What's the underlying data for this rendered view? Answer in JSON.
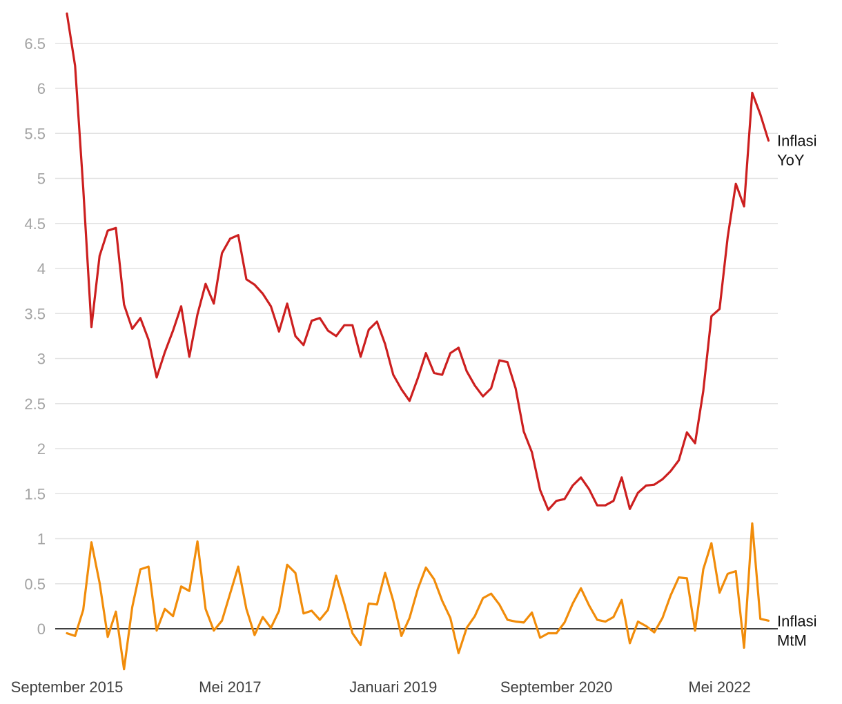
{
  "chart_data": {
    "type": "line",
    "title": "",
    "xlabel": "",
    "ylabel": "",
    "ylim": [
      -0.5,
      6.8
    ],
    "y_ticks": [
      0,
      0.5,
      1,
      1.5,
      2,
      2.5,
      3,
      3.5,
      4,
      4.5,
      5,
      5.5,
      6,
      6.5
    ],
    "x_tick_labels": [
      {
        "label": "September 2015",
        "index": 0
      },
      {
        "label": "Mei 2017",
        "index": 20
      },
      {
        "label": "Januari 2019",
        "index": 40
      },
      {
        "label": "September 2020",
        "index": 60
      },
      {
        "label": "Mei 2022",
        "index": 80
      }
    ],
    "grid": true,
    "legend": "right-inline",
    "series": [
      {
        "name": "Inflasi YoY",
        "label_lines": [
          "Inflasi",
          "YoY"
        ],
        "color": "#cc1f1f",
        "values": [
          6.83,
          6.25,
          4.89,
          3.35,
          4.14,
          4.42,
          4.45,
          3.6,
          3.33,
          3.45,
          3.21,
          2.79,
          3.07,
          3.31,
          3.58,
          3.02,
          3.49,
          3.83,
          3.61,
          4.17,
          4.33,
          4.37,
          3.88,
          3.82,
          3.72,
          3.58,
          3.3,
          3.61,
          3.25,
          3.15,
          3.42,
          3.45,
          3.31,
          3.25,
          3.37,
          3.37,
          3.02,
          3.32,
          3.41,
          3.16,
          2.82,
          2.66,
          2.53,
          2.78,
          3.06,
          2.84,
          2.82,
          3.06,
          3.12,
          2.86,
          2.7,
          2.58,
          2.67,
          2.98,
          2.96,
          2.67,
          2.19,
          1.96,
          1.54,
          1.32,
          1.42,
          1.44,
          1.59,
          1.68,
          1.55,
          1.37,
          1.37,
          1.42,
          1.68,
          1.33,
          1.51,
          1.59,
          1.6,
          1.66,
          1.75,
          1.87,
          2.18,
          2.06,
          2.64,
          3.47,
          3.55,
          4.35,
          4.94,
          4.69,
          5.95,
          5.71,
          5.42
        ]
      },
      {
        "name": "Inflasi MtM",
        "label_lines": [
          "Inflasi",
          "MtM"
        ],
        "color": "#f18c0a",
        "values": [
          -0.05,
          -0.08,
          0.21,
          0.96,
          0.51,
          -0.09,
          0.19,
          -0.45,
          0.24,
          0.66,
          0.69,
          -0.02,
          0.22,
          0.14,
          0.47,
          0.42,
          0.97,
          0.22,
          -0.02,
          0.09,
          0.39,
          0.69,
          0.22,
          -0.07,
          0.13,
          0.01,
          0.2,
          0.71,
          0.62,
          0.17,
          0.2,
          0.1,
          0.21,
          0.59,
          0.28,
          -0.05,
          -0.18,
          0.28,
          0.27,
          0.62,
          0.31,
          -0.08,
          0.12,
          0.44,
          0.68,
          0.55,
          0.31,
          0.12,
          -0.27,
          0.01,
          0.14,
          0.34,
          0.39,
          0.27,
          0.1,
          0.08,
          0.07,
          0.18,
          -0.1,
          -0.05,
          -0.05,
          0.07,
          0.28,
          0.45,
          0.26,
          0.1,
          0.08,
          0.13,
          0.32,
          -0.16,
          0.08,
          0.03,
          -0.04,
          0.12,
          0.37,
          0.57,
          0.56,
          -0.02,
          0.66,
          0.95,
          0.4,
          0.61,
          0.64,
          -0.21,
          1.17,
          0.11,
          0.09
        ]
      }
    ]
  }
}
